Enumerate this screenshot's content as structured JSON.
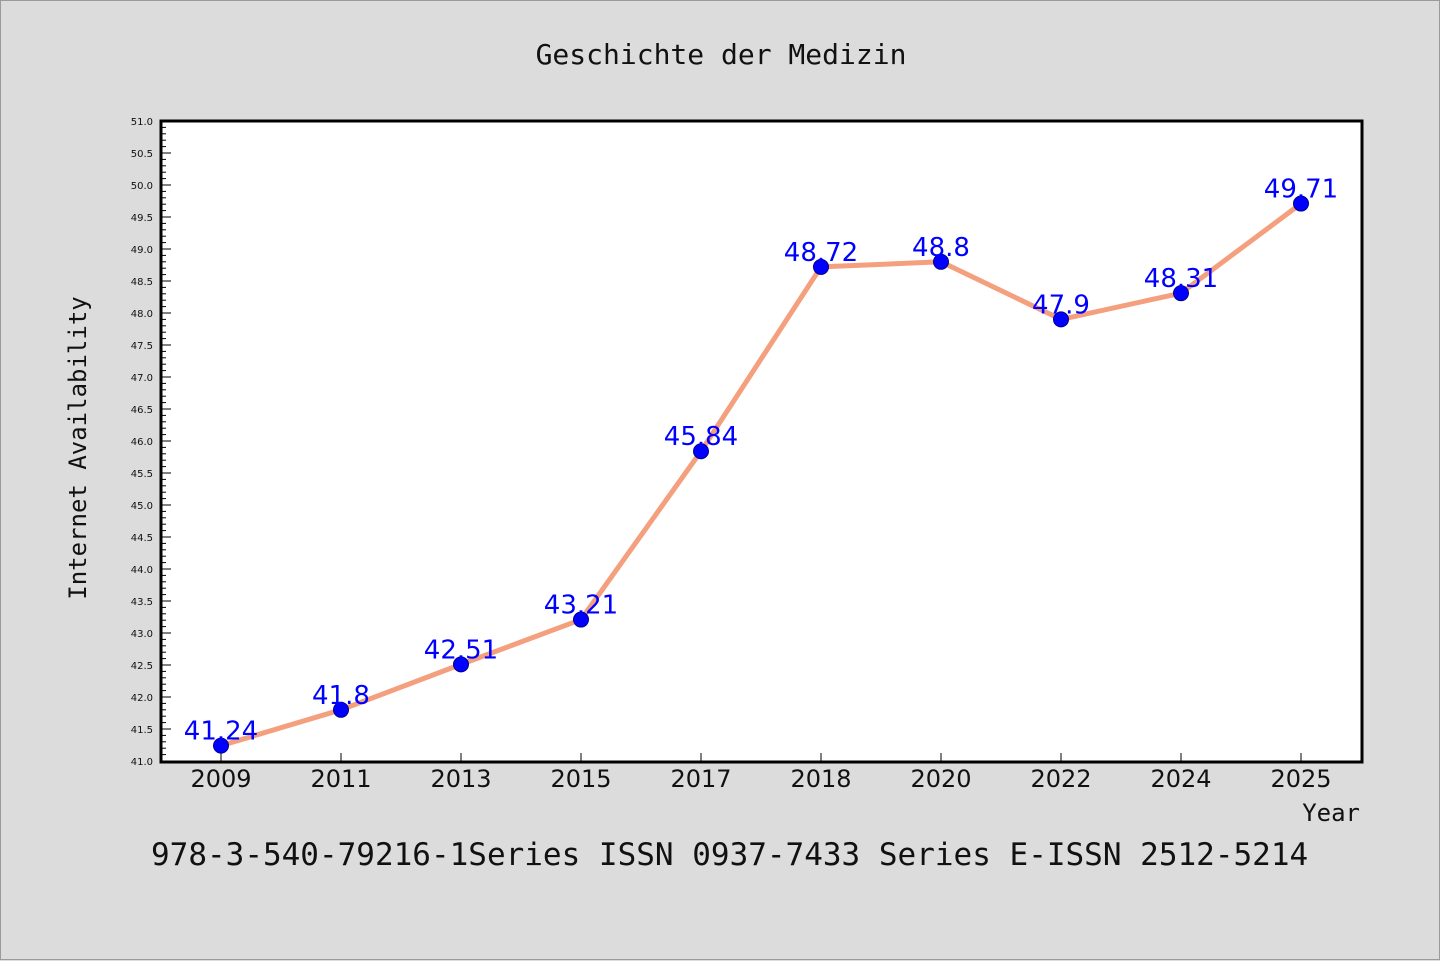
{
  "chart_data": {
    "type": "line",
    "title": "Geschichte der Medizin",
    "xlabel": "Year",
    "ylabel": "Internet Availability",
    "categories": [
      "2009",
      "2011",
      "2013",
      "2015",
      "2017",
      "2018",
      "2020",
      "2022",
      "2024",
      "2025"
    ],
    "series": [
      {
        "values": [
          41.24,
          41.8,
          42.51,
          43.21,
          45.84,
          48.72,
          48.8,
          47.9,
          48.31,
          49.71
        ],
        "data_labels": [
          "41.24",
          "41.8",
          "42.51",
          "43.21",
          "45.84",
          "48.72",
          "48.8",
          "47.9",
          "48.31",
          "49.71"
        ]
      }
    ],
    "ylim": [
      41.0,
      51.0
    ],
    "yticks": [
      "41.0",
      "41.5",
      "42.0",
      "42.5",
      "43.0",
      "43.5",
      "44.0",
      "44.5",
      "45.0",
      "45.5",
      "46.0",
      "46.5",
      "47.0",
      "47.5",
      "48.0",
      "48.5",
      "49.0",
      "49.5",
      "50.0",
      "50.5",
      "51.0"
    ],
    "grid": false,
    "legend": "none",
    "colors": {
      "line": "#f4a07e",
      "marker": "#0000ff",
      "label": "#0000ff",
      "background": "#dcdcdc",
      "plot_background": "#ffffff"
    }
  },
  "footer": "978-3-540-79216-1Series ISSN 0937-7433 Series E-ISSN 2512-5214"
}
